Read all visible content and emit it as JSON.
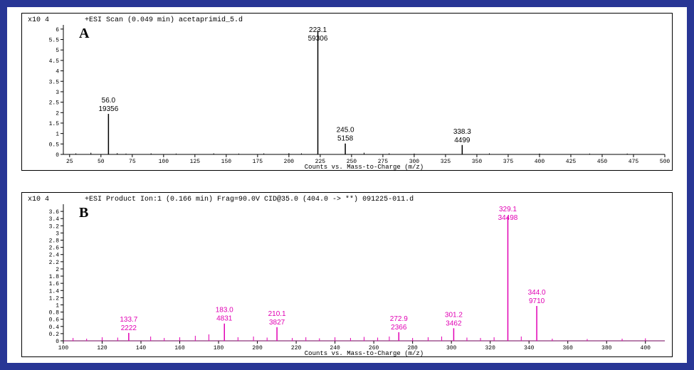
{
  "outer_border_color": "#283695",
  "panelA": {
    "letter": "A",
    "title": "+ESI Scan (0.049 min) acetaprimid_5.d",
    "y_exponent": "x10 4",
    "x_axis_title": "Counts vs. Mass-to-Charge (m/z)",
    "xlim": [
      20,
      500
    ],
    "ylim": [
      0,
      6.2
    ],
    "x_ticks": [
      25,
      50,
      75,
      100,
      125,
      150,
      175,
      200,
      225,
      250,
      275,
      300,
      325,
      350,
      375,
      400,
      425,
      450,
      475,
      500
    ],
    "y_ticks": [
      0,
      0.5,
      1,
      1.5,
      2,
      2.5,
      3,
      3.5,
      4,
      4.5,
      5,
      5.5,
      6
    ],
    "line_color": "#000000",
    "label_color": "#000000",
    "peaks": [
      {
        "mz": 56.0,
        "intensity": 1.94,
        "label_mz": "56.0",
        "label_count": "19356"
      },
      {
        "mz": 223.1,
        "intensity": 5.93,
        "label_mz": "223.1",
        "label_count": "59306"
      },
      {
        "mz": 245.0,
        "intensity": 0.52,
        "label_mz": "245.0",
        "label_count": "5158"
      },
      {
        "mz": 338.3,
        "intensity": 0.45,
        "label_mz": "338.3",
        "label_count": "4499"
      }
    ],
    "noise": [
      {
        "mz": 30,
        "h": 0.05
      },
      {
        "mz": 42,
        "h": 0.08
      },
      {
        "mz": 63,
        "h": 0.06
      },
      {
        "mz": 70,
        "h": 0.04
      },
      {
        "mz": 90,
        "h": 0.05
      },
      {
        "mz": 110,
        "h": 0.04
      },
      {
        "mz": 140,
        "h": 0.05
      },
      {
        "mz": 160,
        "h": 0.04
      },
      {
        "mz": 180,
        "h": 0.05
      },
      {
        "mz": 200,
        "h": 0.06
      },
      {
        "mz": 210,
        "h": 0.05
      },
      {
        "mz": 260,
        "h": 0.08
      },
      {
        "mz": 280,
        "h": 0.05
      },
      {
        "mz": 300,
        "h": 0.04
      },
      {
        "mz": 360,
        "h": 0.05
      },
      {
        "mz": 400,
        "h": 0.04
      },
      {
        "mz": 440,
        "h": 0.04
      },
      {
        "mz": 470,
        "h": 0.04
      }
    ]
  },
  "panelB": {
    "letter": "B",
    "title": "+ESI Product Ion:1 (0.166 min) Frag=90.0V CID@35.0 (404.0 -> **) 091225-011.d",
    "y_exponent": "x10 4",
    "x_axis_title": "Counts vs. Mass-to-Charge (m/z)",
    "xlim": [
      100,
      410
    ],
    "ylim": [
      0,
      3.8
    ],
    "x_ticks": [
      100,
      120,
      140,
      160,
      180,
      200,
      220,
      240,
      260,
      280,
      300,
      320,
      340,
      360,
      380,
      400
    ],
    "y_ticks": [
      0,
      0.2,
      0.4,
      0.6,
      0.8,
      1,
      1.2,
      1.4,
      1.6,
      1.8,
      2,
      2.2,
      2.4,
      2.6,
      2.8,
      3,
      3.2,
      3.4,
      3.6
    ],
    "line_color": "#e100b4",
    "label_color": "#e100b4",
    "peaks": [
      {
        "mz": 133.7,
        "intensity": 0.22,
        "label_mz": "133.7",
        "label_count": "2222"
      },
      {
        "mz": 183.0,
        "intensity": 0.48,
        "label_mz": "183.0",
        "label_count": "4831"
      },
      {
        "mz": 210.1,
        "intensity": 0.38,
        "label_mz": "210.1",
        "label_count": "3827"
      },
      {
        "mz": 272.9,
        "intensity": 0.24,
        "label_mz": "272.9",
        "label_count": "2366"
      },
      {
        "mz": 301.2,
        "intensity": 0.35,
        "label_mz": "301.2",
        "label_count": "3462"
      },
      {
        "mz": 329.1,
        "intensity": 3.45,
        "label_mz": "329.1",
        "label_count": "34498"
      },
      {
        "mz": 344.0,
        "intensity": 0.97,
        "label_mz": "344.0",
        "label_count": "9710"
      }
    ],
    "noise": [
      {
        "mz": 105,
        "h": 0.08
      },
      {
        "mz": 112,
        "h": 0.06
      },
      {
        "mz": 120,
        "h": 0.1
      },
      {
        "mz": 128,
        "h": 0.09
      },
      {
        "mz": 145,
        "h": 0.12
      },
      {
        "mz": 152,
        "h": 0.08
      },
      {
        "mz": 160,
        "h": 0.1
      },
      {
        "mz": 168,
        "h": 0.14
      },
      {
        "mz": 175,
        "h": 0.18
      },
      {
        "mz": 190,
        "h": 0.1
      },
      {
        "mz": 198,
        "h": 0.12
      },
      {
        "mz": 205,
        "h": 0.09
      },
      {
        "mz": 218,
        "h": 0.08
      },
      {
        "mz": 225,
        "h": 0.1
      },
      {
        "mz": 232,
        "h": 0.07
      },
      {
        "mz": 240,
        "h": 0.1
      },
      {
        "mz": 248,
        "h": 0.08
      },
      {
        "mz": 255,
        "h": 0.11
      },
      {
        "mz": 262,
        "h": 0.09
      },
      {
        "mz": 268,
        "h": 0.12
      },
      {
        "mz": 280,
        "h": 0.08
      },
      {
        "mz": 288,
        "h": 0.1
      },
      {
        "mz": 295,
        "h": 0.12
      },
      {
        "mz": 308,
        "h": 0.09
      },
      {
        "mz": 315,
        "h": 0.08
      },
      {
        "mz": 322,
        "h": 0.1
      },
      {
        "mz": 336,
        "h": 0.12
      },
      {
        "mz": 352,
        "h": 0.06
      },
      {
        "mz": 370,
        "h": 0.05
      },
      {
        "mz": 388,
        "h": 0.06
      },
      {
        "mz": 400,
        "h": 0.07
      }
    ]
  }
}
